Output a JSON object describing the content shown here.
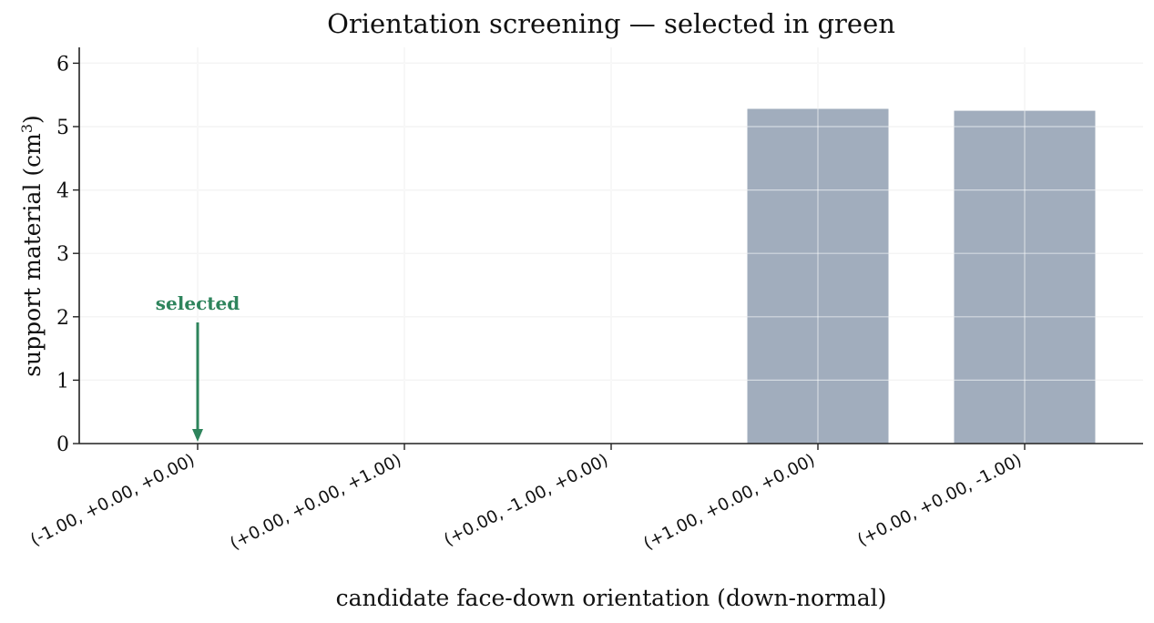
{
  "chart_data": {
    "type": "bar",
    "title": "Orientation screening — selected in green",
    "xlabel": "candidate face-down orientation (down-normal)",
    "ylabel": "support material (cm",
    "ylabel_superscript": "3",
    "ylabel_suffix": ")",
    "categories": [
      "(-1.00, +0.00, +0.00)",
      "(+0.00, +0.00, +1.00)",
      "(+0.00, -1.00, +0.00)",
      "(+1.00, +0.00, +0.00)",
      "(+0.00, +0.00, -1.00)"
    ],
    "values": [
      0,
      0,
      0,
      5.28,
      5.25
    ],
    "selected_index": 0,
    "annotation": "selected",
    "ylim": [
      0,
      6.25
    ],
    "yticks": [
      0,
      1,
      2,
      3,
      4,
      5,
      6
    ],
    "grid": true,
    "colors": {
      "bar": "#a1adbd",
      "selected": "#2e845c",
      "grid": "#e6e6e6",
      "axis": "#222222"
    }
  }
}
